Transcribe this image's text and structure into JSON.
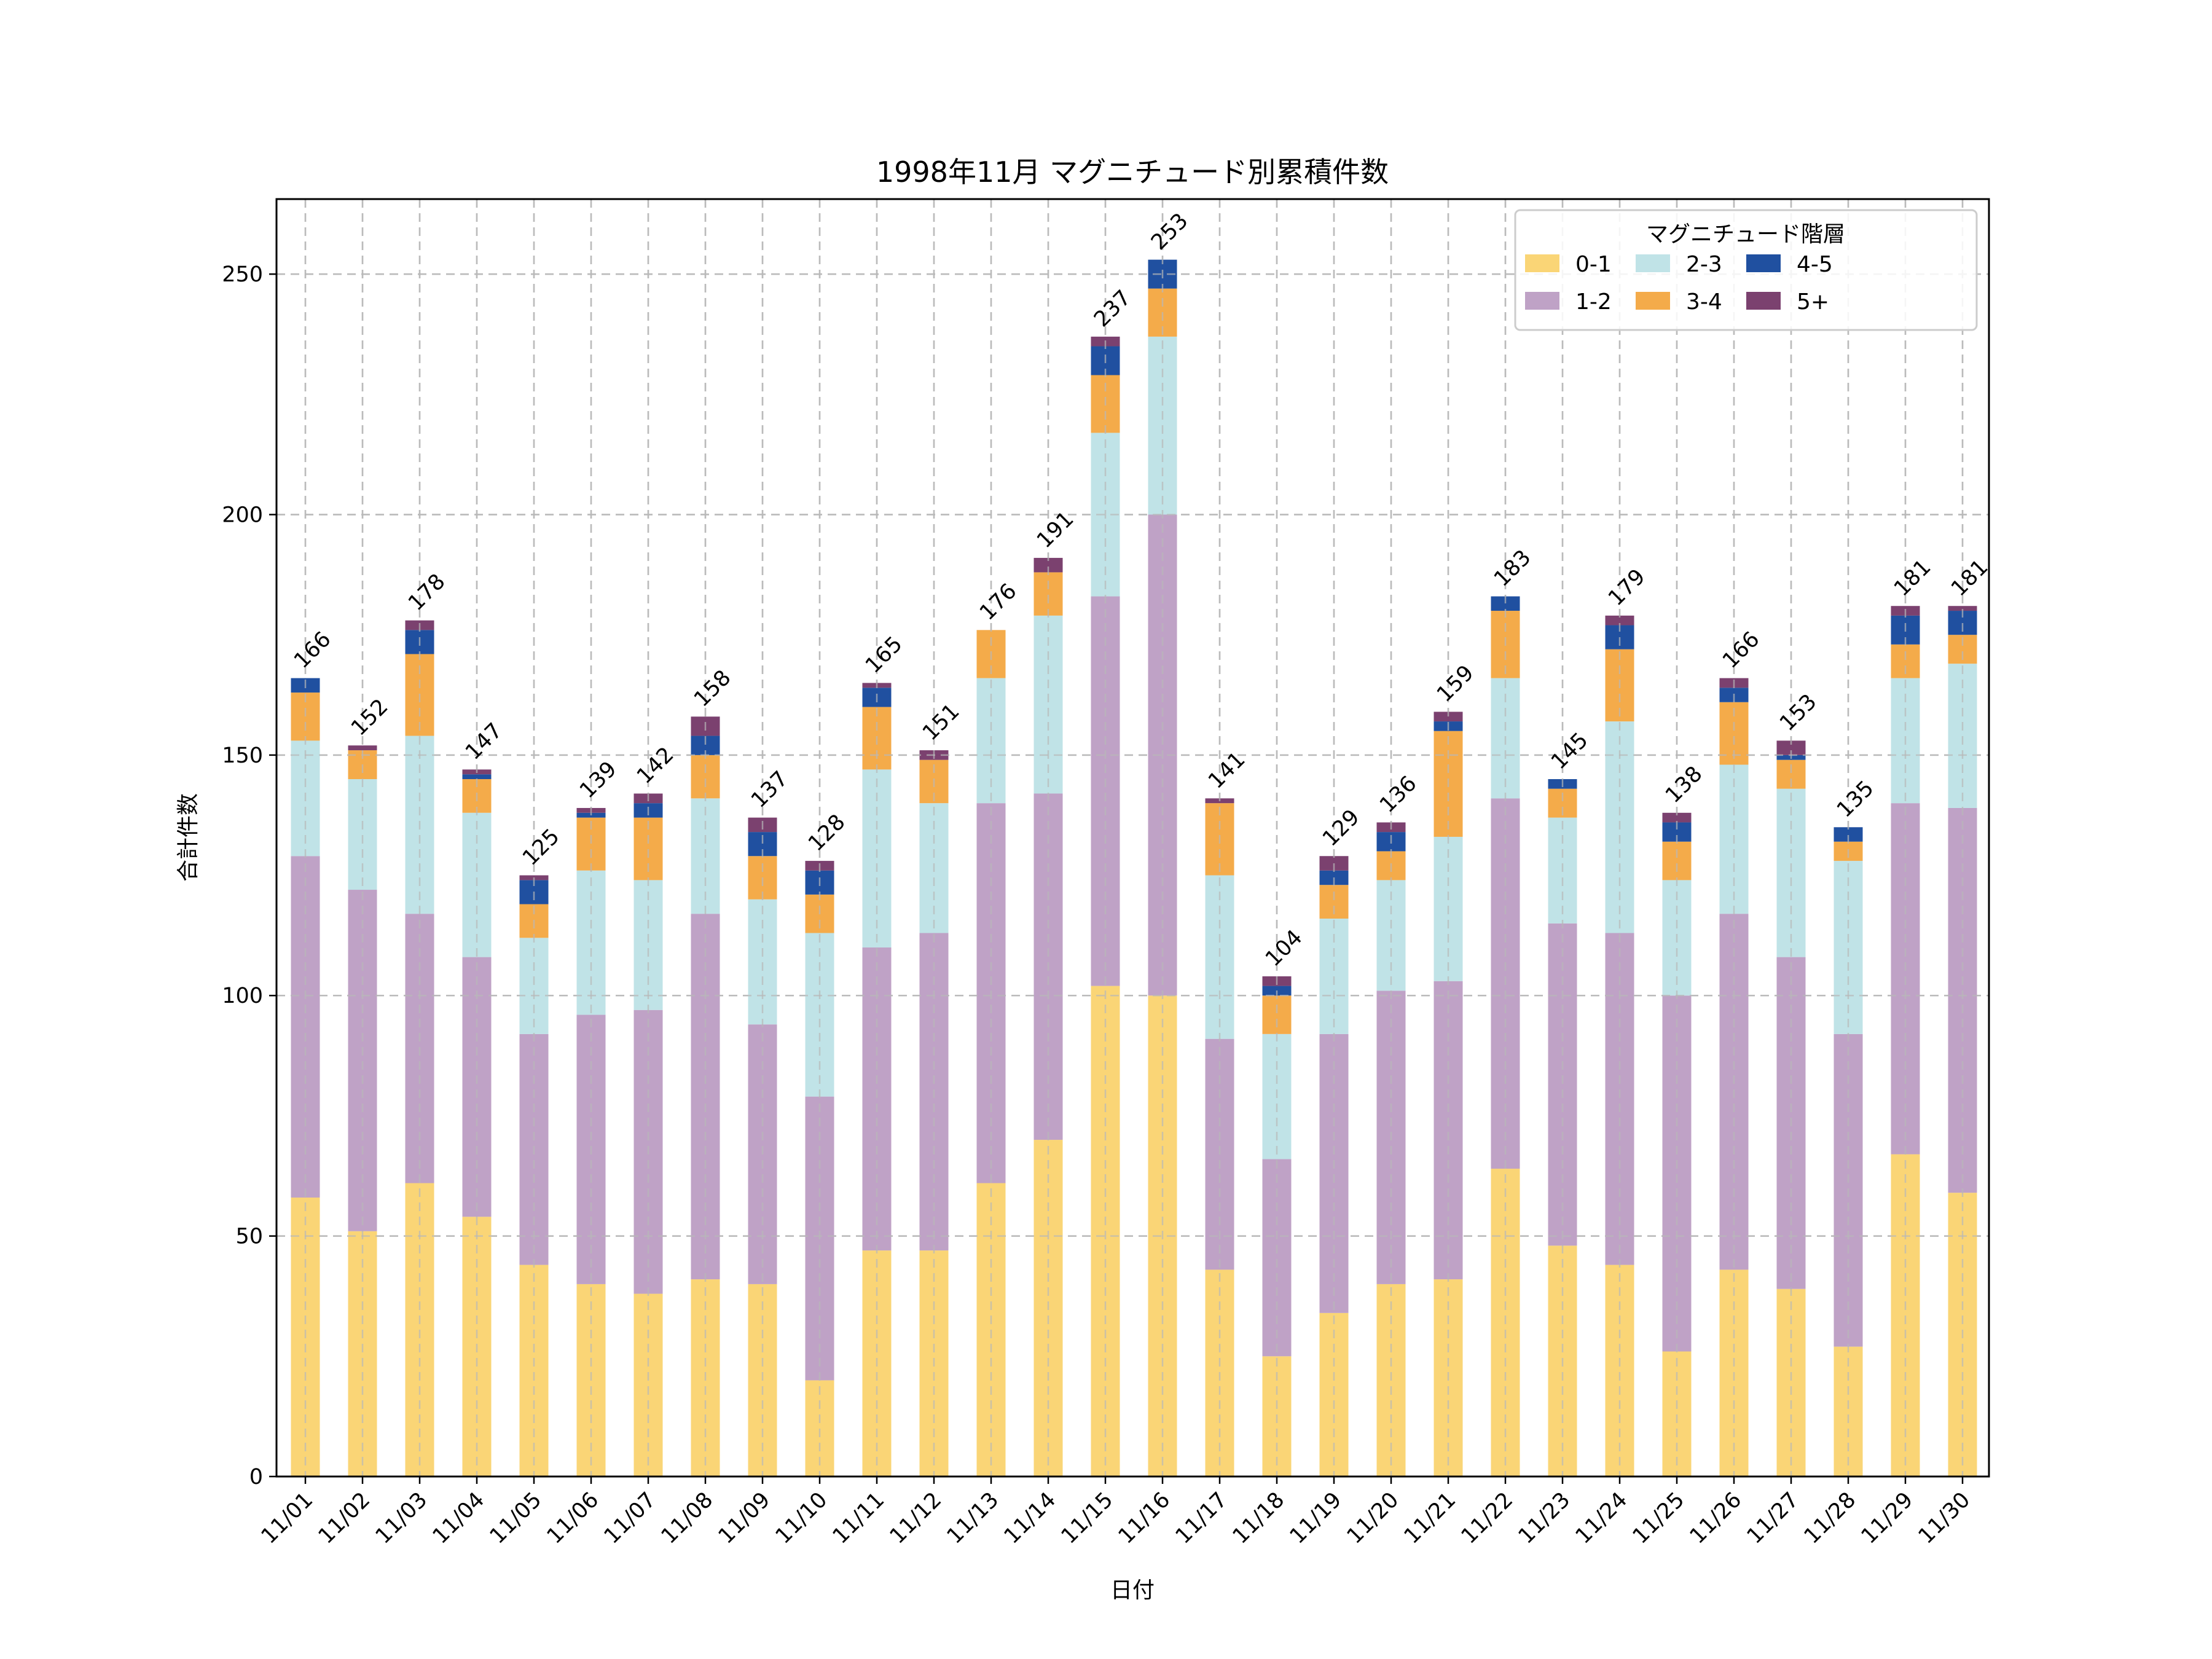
{
  "chart_data": {
    "type": "bar",
    "stacked": true,
    "title": "1998年11月 マグニチュード別累積件数",
    "xlabel": "日付",
    "ylabel": "合計件数",
    "ylim": [
      0,
      265.6
    ],
    "yticks": [
      0,
      50,
      100,
      150,
      200,
      250
    ],
    "grid": true,
    "legend": {
      "title": "マグニチュード階層",
      "placement": "top-right",
      "columns": 3
    },
    "categories": [
      "11/01",
      "11/02",
      "11/03",
      "11/04",
      "11/05",
      "11/06",
      "11/07",
      "11/08",
      "11/09",
      "11/10",
      "11/11",
      "11/12",
      "11/13",
      "11/14",
      "11/15",
      "11/16",
      "11/17",
      "11/18",
      "11/19",
      "11/20",
      "11/21",
      "11/22",
      "11/23",
      "11/24",
      "11/25",
      "11/26",
      "11/27",
      "11/28",
      "11/29",
      "11/30"
    ],
    "series": [
      {
        "name": "0-1",
        "color": "#fad576",
        "values": [
          58,
          51,
          61,
          54,
          44,
          40,
          38,
          41,
          40,
          20,
          47,
          47,
          61,
          70,
          102,
          100,
          43,
          25,
          34,
          40,
          41,
          64,
          48,
          44,
          26,
          43,
          39,
          27,
          67,
          59
        ]
      },
      {
        "name": "1-2",
        "color": "#bfa2c6",
        "values": [
          71,
          71,
          56,
          54,
          48,
          56,
          59,
          76,
          54,
          59,
          63,
          66,
          79,
          72,
          81,
          100,
          48,
          41,
          58,
          61,
          62,
          77,
          67,
          69,
          74,
          74,
          69,
          65,
          73,
          80
        ]
      },
      {
        "name": "2-3",
        "color": "#c0e3e7",
        "values": [
          24,
          23,
          37,
          30,
          20,
          30,
          27,
          24,
          26,
          34,
          37,
          27,
          26,
          37,
          34,
          37,
          34,
          26,
          24,
          23,
          30,
          25,
          22,
          44,
          24,
          31,
          35,
          36,
          26,
          30
        ]
      },
      {
        "name": "3-4",
        "color": "#f4ab4a",
        "values": [
          10,
          6,
          17,
          7,
          7,
          11,
          13,
          9,
          9,
          8,
          13,
          9,
          10,
          9,
          12,
          10,
          15,
          8,
          7,
          6,
          22,
          14,
          6,
          15,
          8,
          13,
          6,
          4,
          7,
          6
        ]
      },
      {
        "name": "4-5",
        "color": "#2050a0",
        "values": [
          3,
          0,
          5,
          1,
          5,
          1,
          3,
          4,
          5,
          5,
          4,
          0,
          0,
          0,
          6,
          6,
          0,
          2,
          3,
          4,
          2,
          3,
          2,
          5,
          4,
          3,
          1,
          3,
          6,
          5
        ]
      },
      {
        "name": "5+",
        "color": "#7b416f",
        "values": [
          0,
          1,
          2,
          1,
          1,
          1,
          2,
          4,
          3,
          2,
          1,
          2,
          0,
          3,
          2,
          0,
          1,
          2,
          3,
          2,
          2,
          0,
          0,
          2,
          2,
          2,
          3,
          0,
          2,
          1
        ]
      }
    ],
    "totals": [
      166,
      152,
      178,
      147,
      125,
      139,
      142,
      158,
      137,
      128,
      165,
      151,
      176,
      191,
      237,
      253,
      141,
      104,
      129,
      136,
      159,
      183,
      145,
      179,
      138,
      166,
      153,
      135,
      181,
      181
    ]
  }
}
